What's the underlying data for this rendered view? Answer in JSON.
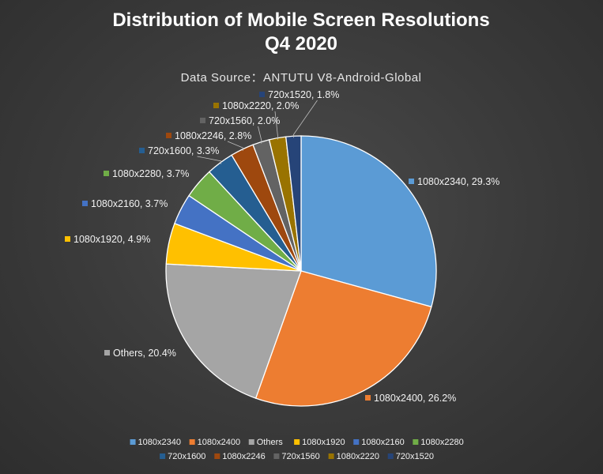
{
  "chart_data": {
    "type": "pie",
    "title": [
      "Distribution of Mobile Screen Resolutions",
      "Q4 2020"
    ],
    "subtitle": "Data Source：ANTUTU V8-Android-Global",
    "legend_position": "bottom",
    "slices": [
      {
        "label": "1080x2340",
        "value": 29.3,
        "display": "1080x2340, 29.3%",
        "color": "#5b9bd5"
      },
      {
        "label": "1080x2400",
        "value": 26.2,
        "display": "1080x2400, 26.2%",
        "color": "#ed7d31"
      },
      {
        "label": "Others",
        "value": 20.4,
        "display": "Others, 20.4%",
        "color": "#a5a5a5"
      },
      {
        "label": "1080x1920",
        "value": 4.9,
        "display": "1080x1920, 4.9%",
        "color": "#ffc000"
      },
      {
        "label": "1080x2160",
        "value": 3.7,
        "display": "1080x2160, 3.7%",
        "color": "#4472c4"
      },
      {
        "label": "1080x2280",
        "value": 3.7,
        "display": "1080x2280, 3.7%",
        "color": "#70ad47"
      },
      {
        "label": "720x1600",
        "value": 3.3,
        "display": "720x1600, 3.3%",
        "color": "#255e91"
      },
      {
        "label": "1080x2246",
        "value": 2.8,
        "display": "1080x2246, 2.8%",
        "color": "#9e480e"
      },
      {
        "label": "720x1560",
        "value": 2.0,
        "display": "720x1560, 2.0%",
        "color": "#636363"
      },
      {
        "label": "1080x2220",
        "value": 2.0,
        "display": "1080x2220, 2.0%",
        "color": "#997300"
      },
      {
        "label": "720x1520",
        "value": 1.8,
        "display": "720x1520, 1.8%",
        "color": "#264478"
      }
    ]
  }
}
